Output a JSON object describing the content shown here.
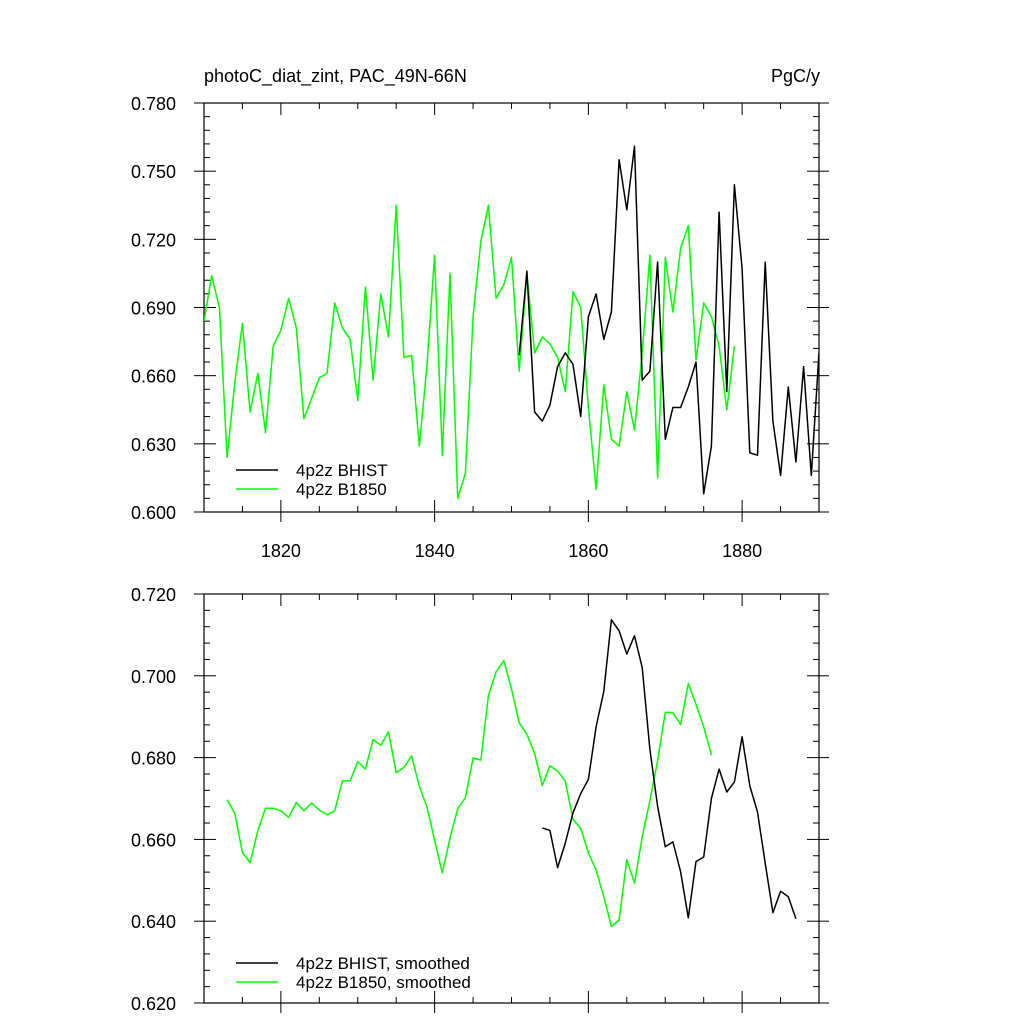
{
  "title_left": "photoC_diat_zint, PAC_49N-66N",
  "title_right": "PgC/y",
  "chart_data": [
    {
      "type": "line",
      "xlim": [
        1810,
        1890
      ],
      "ylim": [
        0.6,
        0.78
      ],
      "xticks": [
        1820,
        1840,
        1860,
        1880
      ],
      "xticklabels": [
        "1820",
        "1840",
        "1860",
        "1880"
      ],
      "yticks": [
        0.6,
        0.63,
        0.66,
        0.69,
        0.72,
        0.75,
        0.78
      ],
      "yticklabels": [
        "0.600",
        "0.630",
        "0.660",
        "0.690",
        "0.720",
        "0.750",
        "0.780"
      ],
      "legend_position": "bottom-left",
      "series": [
        {
          "name": "4p2z BHIST",
          "color": "#000000",
          "x": [
            1851,
            1852,
            1853,
            1854,
            1855,
            1856,
            1857,
            1858,
            1859,
            1860,
            1861,
            1862,
            1863,
            1864,
            1865,
            1866,
            1867,
            1868,
            1869,
            1870,
            1871,
            1872,
            1873,
            1874,
            1875,
            1876,
            1877,
            1878,
            1879,
            1880,
            1881,
            1882,
            1883,
            1884,
            1885,
            1886,
            1887,
            1888,
            1889,
            1890
          ],
          "y": [
            0.669,
            0.706,
            0.644,
            0.64,
            0.647,
            0.664,
            0.67,
            0.665,
            0.642,
            0.686,
            0.696,
            0.676,
            0.688,
            0.755,
            0.733,
            0.761,
            0.658,
            0.662,
            0.71,
            0.632,
            0.646,
            0.646,
            0.655,
            0.666,
            0.608,
            0.629,
            0.732,
            0.653,
            0.744,
            0.707,
            0.626,
            0.625,
            0.71,
            0.64,
            0.616,
            0.655,
            0.622,
            0.664,
            0.616,
            0.67
          ]
        },
        {
          "name": "4p2z B1850",
          "color": "#00ff00",
          "x": [
            1810,
            1811,
            1812,
            1813,
            1814,
            1815,
            1816,
            1817,
            1818,
            1819,
            1820,
            1821,
            1822,
            1823,
            1824,
            1825,
            1826,
            1827,
            1828,
            1829,
            1830,
            1831,
            1832,
            1833,
            1834,
            1835,
            1836,
            1837,
            1838,
            1839,
            1840,
            1841,
            1842,
            1843,
            1844,
            1845,
            1846,
            1847,
            1848,
            1849,
            1850,
            1851,
            1852,
            1853,
            1854,
            1855,
            1856,
            1857,
            1858,
            1859,
            1860,
            1861,
            1862,
            1863,
            1864,
            1865,
            1866,
            1867,
            1868,
            1869,
            1870,
            1871,
            1872,
            1873,
            1874,
            1875,
            1876,
            1877,
            1878,
            1879
          ],
          "y": [
            0.684,
            0.704,
            0.69,
            0.624,
            0.657,
            0.683,
            0.644,
            0.661,
            0.635,
            0.673,
            0.68,
            0.694,
            0.681,
            0.641,
            0.65,
            0.659,
            0.661,
            0.692,
            0.681,
            0.676,
            0.649,
            0.699,
            0.658,
            0.696,
            0.677,
            0.735,
            0.668,
            0.669,
            0.629,
            0.664,
            0.713,
            0.625,
            0.705,
            0.606,
            0.617,
            0.686,
            0.719,
            0.735,
            0.694,
            0.7,
            0.712,
            0.662,
            0.705,
            0.67,
            0.677,
            0.674,
            0.668,
            0.653,
            0.697,
            0.69,
            0.646,
            0.61,
            0.656,
            0.632,
            0.629,
            0.653,
            0.636,
            0.67,
            0.713,
            0.615,
            0.712,
            0.688,
            0.716,
            0.726,
            0.667,
            0.692,
            0.686,
            0.673,
            0.645,
            0.673
          ]
        }
      ]
    },
    {
      "type": "line",
      "xlim": [
        1810,
        1890
      ],
      "ylim": [
        0.62,
        0.72
      ],
      "xticks": [
        1820,
        1840,
        1860,
        1880
      ],
      "yticks": [
        0.62,
        0.64,
        0.66,
        0.68,
        0.7,
        0.72
      ],
      "yticklabels": [
        "0.620",
        "0.640",
        "0.660",
        "0.680",
        "0.700",
        "0.720"
      ],
      "legend_position": "bottom-left",
      "series": [
        {
          "name": "4p2z BHIST, smoothed",
          "color": "#000000",
          "x": [
            1854,
            1855,
            1856,
            1857,
            1858,
            1859,
            1860,
            1861,
            1862,
            1863,
            1864,
            1865,
            1866,
            1867,
            1868,
            1869,
            1870,
            1871,
            1872,
            1873,
            1874,
            1875,
            1876,
            1877,
            1878,
            1879,
            1880,
            1881,
            1882,
            1883,
            1884,
            1885,
            1886,
            1887
          ],
          "y": [
            0.6628,
            0.6622,
            0.6531,
            0.6591,
            0.6665,
            0.6712,
            0.6747,
            0.6875,
            0.6962,
            0.7137,
            0.711,
            0.7053,
            0.7098,
            0.702,
            0.682,
            0.6681,
            0.6582,
            0.6594,
            0.6521,
            0.6408,
            0.6546,
            0.6557,
            0.67,
            0.6772,
            0.6716,
            0.674,
            0.6851,
            0.6731,
            0.6667,
            0.6542,
            0.6421,
            0.6473,
            0.646,
            0.6406
          ]
        },
        {
          "name": "4p2z B1850, smoothed",
          "color": "#00ff00",
          "x": [
            1813,
            1814,
            1815,
            1816,
            1817,
            1818,
            1819,
            1820,
            1821,
            1822,
            1823,
            1824,
            1825,
            1826,
            1827,
            1828,
            1829,
            1830,
            1831,
            1832,
            1833,
            1834,
            1835,
            1836,
            1837,
            1838,
            1839,
            1840,
            1841,
            1842,
            1843,
            1844,
            1845,
            1846,
            1847,
            1848,
            1849,
            1850,
            1851,
            1852,
            1853,
            1854,
            1855,
            1856,
            1857,
            1858,
            1859,
            1860,
            1861,
            1862,
            1863,
            1864,
            1865,
            1866,
            1867,
            1868,
            1869,
            1870,
            1871,
            1872,
            1873,
            1874,
            1875,
            1876
          ],
          "y": [
            0.6697,
            0.6664,
            0.6568,
            0.6543,
            0.6621,
            0.6676,
            0.6676,
            0.667,
            0.6654,
            0.669,
            0.667,
            0.6689,
            0.6672,
            0.666,
            0.667,
            0.6743,
            0.6743,
            0.679,
            0.6772,
            0.6844,
            0.683,
            0.6863,
            0.6763,
            0.6776,
            0.6804,
            0.673,
            0.668,
            0.6598,
            0.6518,
            0.6603,
            0.6675,
            0.6702,
            0.6799,
            0.6794,
            0.6951,
            0.701,
            0.7037,
            0.6968,
            0.6885,
            0.6857,
            0.681,
            0.6732,
            0.678,
            0.6767,
            0.6742,
            0.6649,
            0.6627,
            0.6567,
            0.6525,
            0.646,
            0.6387,
            0.6403,
            0.655,
            0.6493,
            0.6606,
            0.6695,
            0.6792,
            0.6911,
            0.691,
            0.6881,
            0.6981,
            0.693,
            0.6875,
            0.6806
          ]
        }
      ]
    }
  ]
}
